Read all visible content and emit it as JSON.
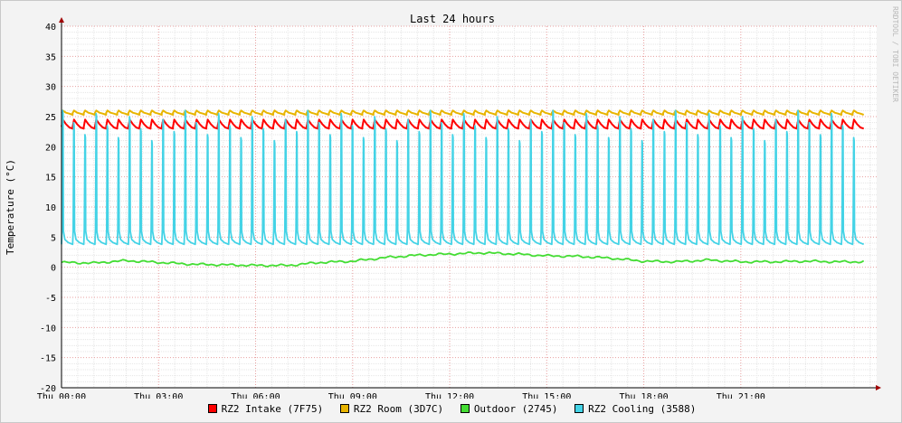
{
  "chart_data": {
    "type": "line",
    "title": "Last 24 hours",
    "ylabel": "Temperature (°C)",
    "watermark": "RRDTOOL / TOBI OETIKER",
    "ylim": [
      -20,
      40
    ],
    "yticks": [
      40,
      35,
      30,
      25,
      20,
      15,
      10,
      5,
      0,
      -5,
      -10,
      -15,
      -20
    ],
    "xlim_hours": [
      0,
      25.2
    ],
    "xticks": [
      {
        "hour": 0,
        "label": "Thu 00:00"
      },
      {
        "hour": 3,
        "label": "Thu 03:00"
      },
      {
        "hour": 6,
        "label": "Thu 06:00"
      },
      {
        "hour": 9,
        "label": "Thu 09:00"
      },
      {
        "hour": 12,
        "label": "Thu 12:00"
      },
      {
        "hour": 15,
        "label": "Thu 15:00"
      },
      {
        "hour": 18,
        "label": "Thu 18:00"
      },
      {
        "hour": 21,
        "label": "Thu 21:00"
      }
    ],
    "grid": true,
    "legend_position": "bottom",
    "series": [
      {
        "name": "RZ2 Intake (7F75)",
        "color": "#ff0000",
        "pattern": "sawtooth",
        "cycles": 72,
        "min": 23.0,
        "max": 24.5,
        "start_hour": 0.0,
        "end_hour": 24.8
      },
      {
        "name": "RZ2 Room (3D7C)",
        "color": "#e8b400",
        "pattern": "sawtooth",
        "cycles": 72,
        "min": 25.3,
        "max": 26.0,
        "start_hour": 0.0,
        "end_hour": 24.8
      },
      {
        "name": "Outdoor (2745)",
        "color": "#44dd33",
        "pattern": "smooth",
        "x": [
          0,
          1,
          2,
          3,
          4,
          5,
          6,
          7,
          8,
          9,
          10,
          11,
          12,
          13,
          14,
          15,
          16,
          17,
          18,
          19,
          20,
          21,
          22,
          23,
          24,
          24.8
        ],
        "values": [
          0.8,
          0.7,
          1.1,
          0.8,
          0.5,
          0.4,
          0.3,
          0.3,
          0.8,
          1.0,
          1.6,
          2.0,
          2.2,
          2.4,
          2.2,
          1.9,
          1.8,
          1.5,
          1.0,
          0.9,
          1.2,
          0.9,
          0.9,
          1.0,
          0.9,
          0.9
        ]
      },
      {
        "name": "RZ2 Cooling (3588)",
        "color": "#44d3e6",
        "pattern": "spikes",
        "cycles": 72,
        "min": 3.8,
        "max": 26.0,
        "start_hour": 0.0,
        "end_hour": 24.8
      }
    ]
  },
  "legend": [
    {
      "label": "RZ2 Intake (7F75)",
      "color": "#ff0000"
    },
    {
      "label": "RZ2 Room (3D7C)",
      "color": "#e8b400"
    },
    {
      "label": "Outdoor (2745)",
      "color": "#44dd33"
    },
    {
      "label": "RZ2 Cooling (3588)",
      "color": "#44d3e6"
    }
  ]
}
